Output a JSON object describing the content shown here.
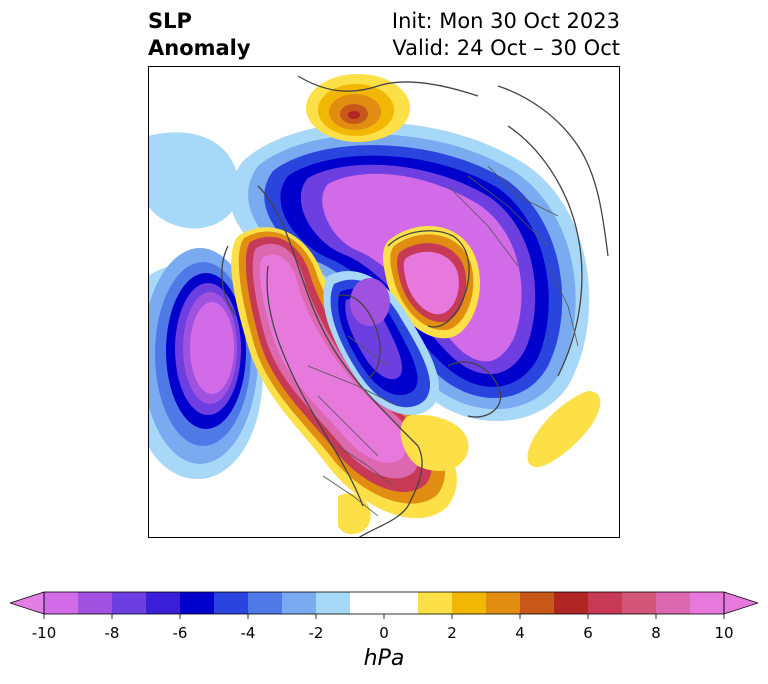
{
  "title": {
    "left_line1": "SLP",
    "left_line2": "Anomaly",
    "right_line1": "Init: Mon 30 Oct 2023",
    "right_line2": "Valid: 24 Oct – 30 Oct"
  },
  "colorbar": {
    "unit": "hPa",
    "tick_labels": [
      "-10",
      "-8",
      "-6",
      "-4",
      "-2",
      "0",
      "2",
      "4",
      "6",
      "8",
      "10"
    ],
    "bins": [
      {
        "from": -10,
        "to": -9,
        "color": "#d16be8"
      },
      {
        "from": -9,
        "to": -8,
        "color": "#a151e0"
      },
      {
        "from": -8,
        "to": -7,
        "color": "#6e3fe0"
      },
      {
        "from": -7,
        "to": -6,
        "color": "#3a1ed8"
      },
      {
        "from": -6,
        "to": -5,
        "color": "#0000cc"
      },
      {
        "from": -5,
        "to": -4,
        "color": "#2a45dd"
      },
      {
        "from": -4,
        "to": -3,
        "color": "#4f79e6"
      },
      {
        "from": -3,
        "to": -2,
        "color": "#7aaaf0"
      },
      {
        "from": -2,
        "to": -1,
        "color": "#a8d8f8"
      },
      {
        "from": -1,
        "to": 1,
        "color": "#ffffff"
      },
      {
        "from": 1,
        "to": 2,
        "color": "#fde047"
      },
      {
        "from": 2,
        "to": 3,
        "color": "#f2b705"
      },
      {
        "from": 3,
        "to": 4,
        "color": "#e08d12"
      },
      {
        "from": 4,
        "to": 5,
        "color": "#c8581a"
      },
      {
        "from": 5,
        "to": 6,
        "color": "#b22525"
      },
      {
        "from": 6,
        "to": 7,
        "color": "#c63a55"
      },
      {
        "from": 7,
        "to": 8,
        "color": "#d05578"
      },
      {
        "from": 8,
        "to": 9,
        "color": "#dc68b0"
      },
      {
        "from": 9,
        "to": 10,
        "color": "#e879dc"
      }
    ],
    "extend_low_color": "#e27fe6",
    "extend_high_color": "#e879dc"
  },
  "map": {
    "projection": "north polar stereographic",
    "features": [
      "coastlines",
      "country borders",
      "state/province borders"
    ],
    "anomaly_centers": [
      {
        "name": "north-pacific-high",
        "sign": "positive",
        "peak_hpa": 10
      },
      {
        "name": "central-pacific-low",
        "sign": "negative",
        "peak_hpa": -10
      },
      {
        "name": "eurasian-low",
        "sign": "negative",
        "peak_hpa": -10
      },
      {
        "name": "barents-high",
        "sign": "positive",
        "peak_hpa": 10
      },
      {
        "name": "greenland-arctic-high",
        "sign": "positive",
        "peak_hpa": 10
      },
      {
        "name": "hudson-bay-low",
        "sign": "negative",
        "peak_hpa": -10
      },
      {
        "name": "atlantic-high",
        "sign": "positive",
        "peak_hpa": 2
      }
    ]
  }
}
